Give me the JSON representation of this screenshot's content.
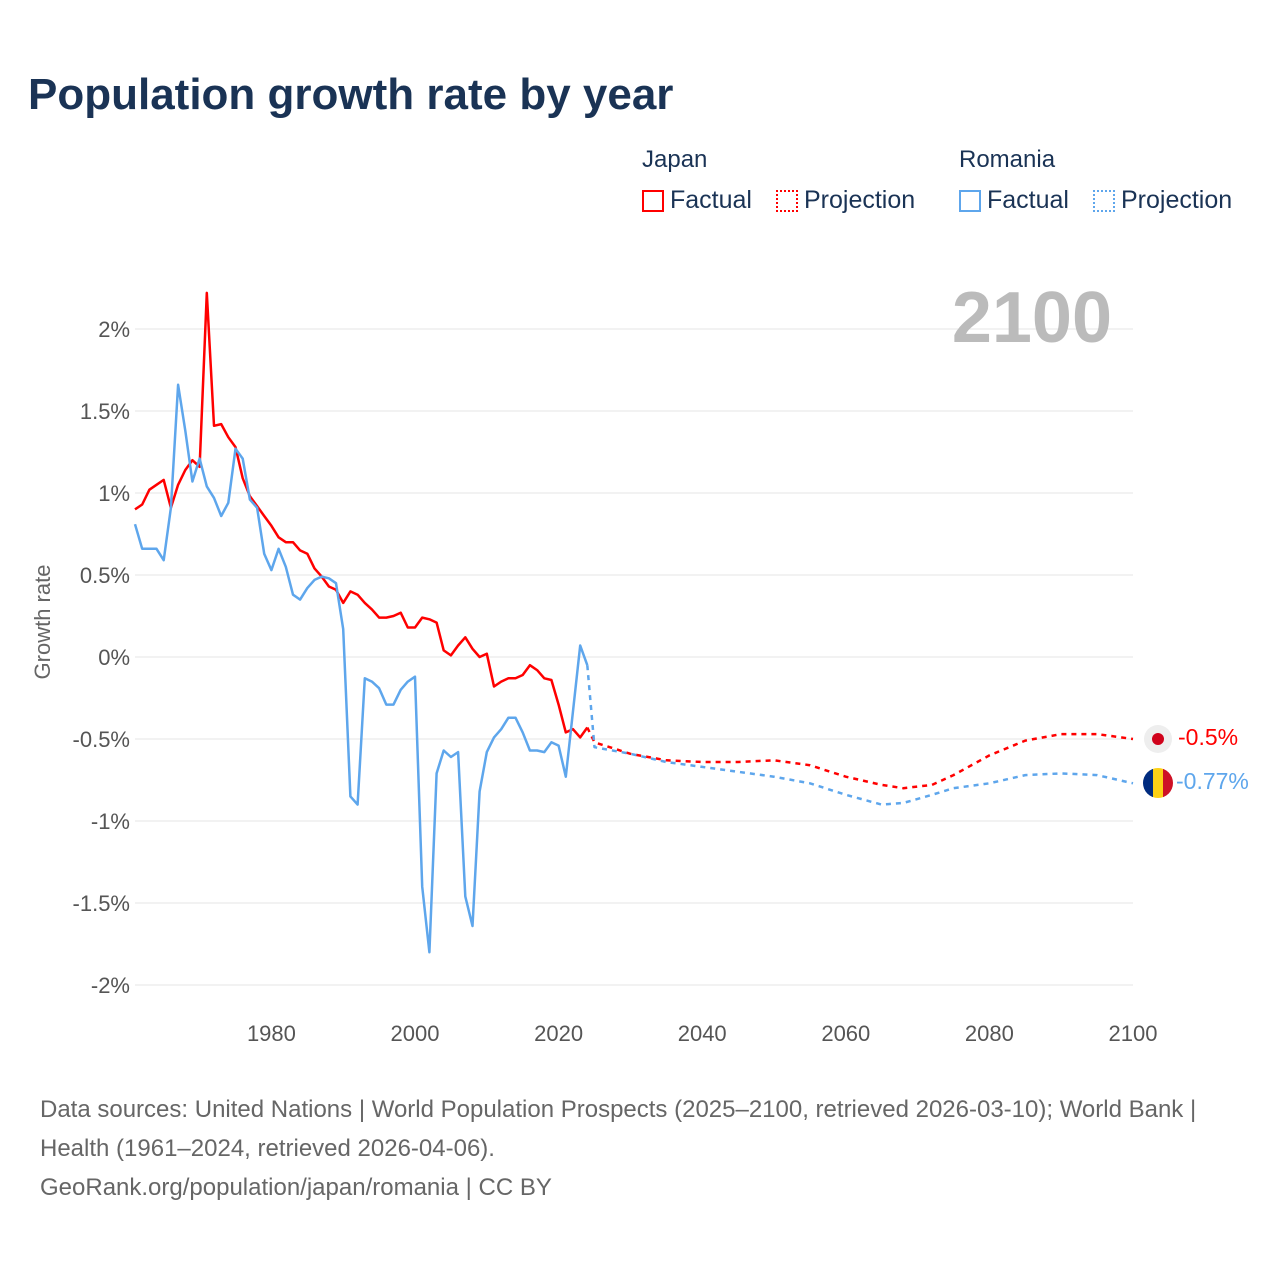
{
  "title": "Population growth rate by year",
  "legend": {
    "groups": [
      {
        "name": "Japan",
        "items": [
          "Factual",
          "Projection"
        ],
        "color": "#ff0000"
      },
      {
        "name": "Romania",
        "items": [
          "Factual",
          "Projection"
        ],
        "color": "#5ea6ec"
      }
    ]
  },
  "year_watermark": "2100",
  "end_labels": {
    "japan": "-0.5%",
    "romania": "-0.77%"
  },
  "sources": {
    "line1": "Data sources: United Nations | World Population Prospects (2025–2100, retrieved 2026-03-10); World Bank | Health (1961–2024, retrieved 2026-04-06).",
    "line2": "GeoRank.org/population/japan/romania | CC BY"
  },
  "chart_data": {
    "type": "line",
    "title": "Population growth rate by year",
    "xlabel": "",
    "ylabel": "Growth rate",
    "xlim": [
      1961,
      2100
    ],
    "ylim": [
      -2.2,
      2.4
    ],
    "xticks": [
      1980,
      2000,
      2020,
      2040,
      2060,
      2080,
      2100
    ],
    "yticks": [
      {
        "v": 2,
        "label": "2%"
      },
      {
        "v": 1.5,
        "label": "1.5%"
      },
      {
        "v": 1,
        "label": "1%"
      },
      {
        "v": 0.5,
        "label": "0.5%"
      },
      {
        "v": 0,
        "label": "0%"
      },
      {
        "v": -0.5,
        "label": "-0.5%"
      },
      {
        "v": -1,
        "label": "-1%"
      },
      {
        "v": -1.5,
        "label": "-1.5%"
      },
      {
        "v": -2,
        "label": "-2%"
      }
    ],
    "grid": true,
    "legend_position": "top-right",
    "series": [
      {
        "name": "Japan",
        "kind": "factual",
        "color": "#ff0000",
        "start": 1961,
        "values": [
          0.9,
          0.93,
          1.02,
          1.05,
          1.08,
          0.91,
          1.05,
          1.14,
          1.2,
          1.16,
          2.22,
          1.41,
          1.42,
          1.34,
          1.28,
          1.09,
          0.98,
          0.92,
          0.86,
          0.8,
          0.73,
          0.7,
          0.7,
          0.65,
          0.63,
          0.54,
          0.49,
          0.43,
          0.41,
          0.33,
          0.4,
          0.38,
          0.33,
          0.29,
          0.24,
          0.24,
          0.25,
          0.27,
          0.18,
          0.18,
          0.24,
          0.23,
          0.21,
          0.04,
          0.01,
          0.07,
          0.12,
          0.05,
          0.0,
          0.02,
          -0.18,
          -0.15,
          -0.13,
          -0.13,
          -0.11,
          -0.05,
          -0.08,
          -0.13,
          -0.14,
          -0.29,
          -0.46,
          -0.44,
          -0.49,
          -0.43
        ]
      },
      {
        "name": "Japan",
        "kind": "projection",
        "color": "#ff0000",
        "x": [
          2024,
          2025,
          2030,
          2035,
          2040,
          2045,
          2050,
          2055,
          2060,
          2065,
          2068,
          2072,
          2075,
          2080,
          2085,
          2090,
          2095,
          2100
        ],
        "values": [
          -0.43,
          -0.52,
          -0.59,
          -0.63,
          -0.64,
          -0.64,
          -0.63,
          -0.66,
          -0.73,
          -0.78,
          -0.8,
          -0.78,
          -0.72,
          -0.6,
          -0.51,
          -0.47,
          -0.47,
          -0.5
        ]
      },
      {
        "name": "Romania",
        "kind": "factual",
        "color": "#5ea6ec",
        "start": 1961,
        "values": [
          0.81,
          0.66,
          0.66,
          0.66,
          0.59,
          0.91,
          1.66,
          1.38,
          1.07,
          1.21,
          1.04,
          0.97,
          0.86,
          0.94,
          1.27,
          1.21,
          0.96,
          0.91,
          0.63,
          0.53,
          0.66,
          0.55,
          0.38,
          0.35,
          0.42,
          0.47,
          0.49,
          0.48,
          0.45,
          0.17,
          -0.85,
          -0.9,
          -0.13,
          -0.15,
          -0.19,
          -0.29,
          -0.29,
          -0.2,
          -0.15,
          -0.12,
          -1.4,
          -1.8,
          -0.71,
          -0.57,
          -0.61,
          -0.58,
          -1.46,
          -1.64,
          -0.82,
          -0.58,
          -0.49,
          -0.44,
          -0.37,
          -0.37,
          -0.46,
          -0.57,
          -0.57,
          -0.58,
          -0.52,
          -0.54,
          -0.73,
          -0.33,
          0.07,
          -0.05
        ]
      },
      {
        "name": "Romania",
        "kind": "projection",
        "color": "#5ea6ec",
        "x": [
          2024,
          2025,
          2030,
          2035,
          2040,
          2045,
          2050,
          2055,
          2060,
          2065,
          2068,
          2072,
          2075,
          2080,
          2085,
          2090,
          2095,
          2100
        ],
        "values": [
          -0.05,
          -0.55,
          -0.59,
          -0.64,
          -0.67,
          -0.7,
          -0.73,
          -0.77,
          -0.84,
          -0.9,
          -0.89,
          -0.84,
          -0.8,
          -0.77,
          -0.72,
          -0.71,
          -0.72,
          -0.77
        ]
      }
    ]
  }
}
